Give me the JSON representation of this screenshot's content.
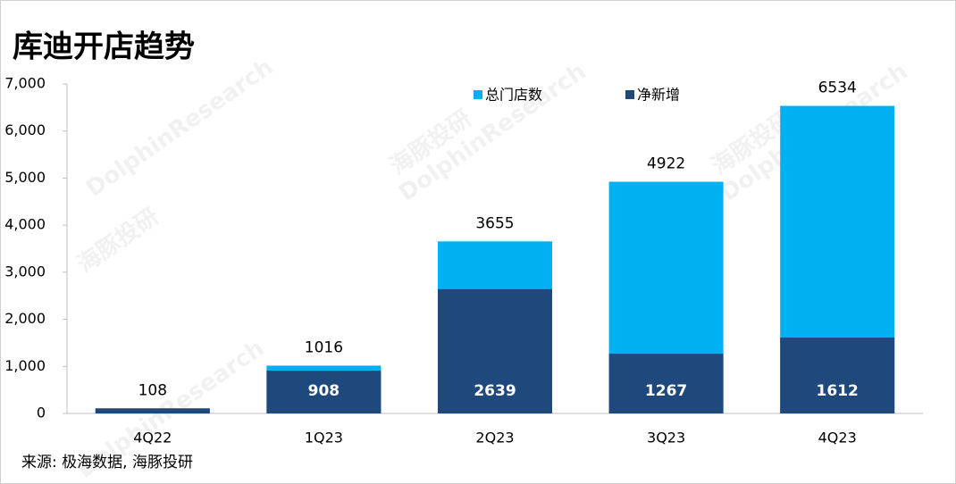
{
  "chart_data": {
    "type": "bar",
    "title": "库迪开店趋势",
    "source": "来源: 极海数据, 海豚投研",
    "watermark": [
      "海豚投研",
      "DolphinResearch"
    ],
    "categories": [
      "4Q22",
      "1Q23",
      "2Q23",
      "3Q23",
      "4Q23"
    ],
    "series": [
      {
        "name": "总门店数",
        "color": "#00b0f0",
        "values": [
          108,
          1016,
          3655,
          4922,
          6534
        ]
      },
      {
        "name": "净新增",
        "color": "#1f497d",
        "values": [
          108,
          908,
          2639,
          1267,
          1612
        ],
        "value_labels": [
          null,
          "908",
          "2639",
          "1267",
          "1612"
        ]
      }
    ],
    "ylim": [
      0,
      7000
    ],
    "yticks": [
      0,
      {
        "value": 1000,
        "label": "1,000"
      },
      {
        "value": 2000,
        "label": "2,000"
      },
      {
        "value": 3000,
        "label": "3,000"
      },
      {
        "value": 4000,
        "label": "4,000"
      },
      {
        "value": 5000,
        "label": "5,000"
      },
      {
        "value": 6000,
        "label": "6,000"
      },
      {
        "value": 7000,
        "label": "7,000"
      }
    ]
  }
}
